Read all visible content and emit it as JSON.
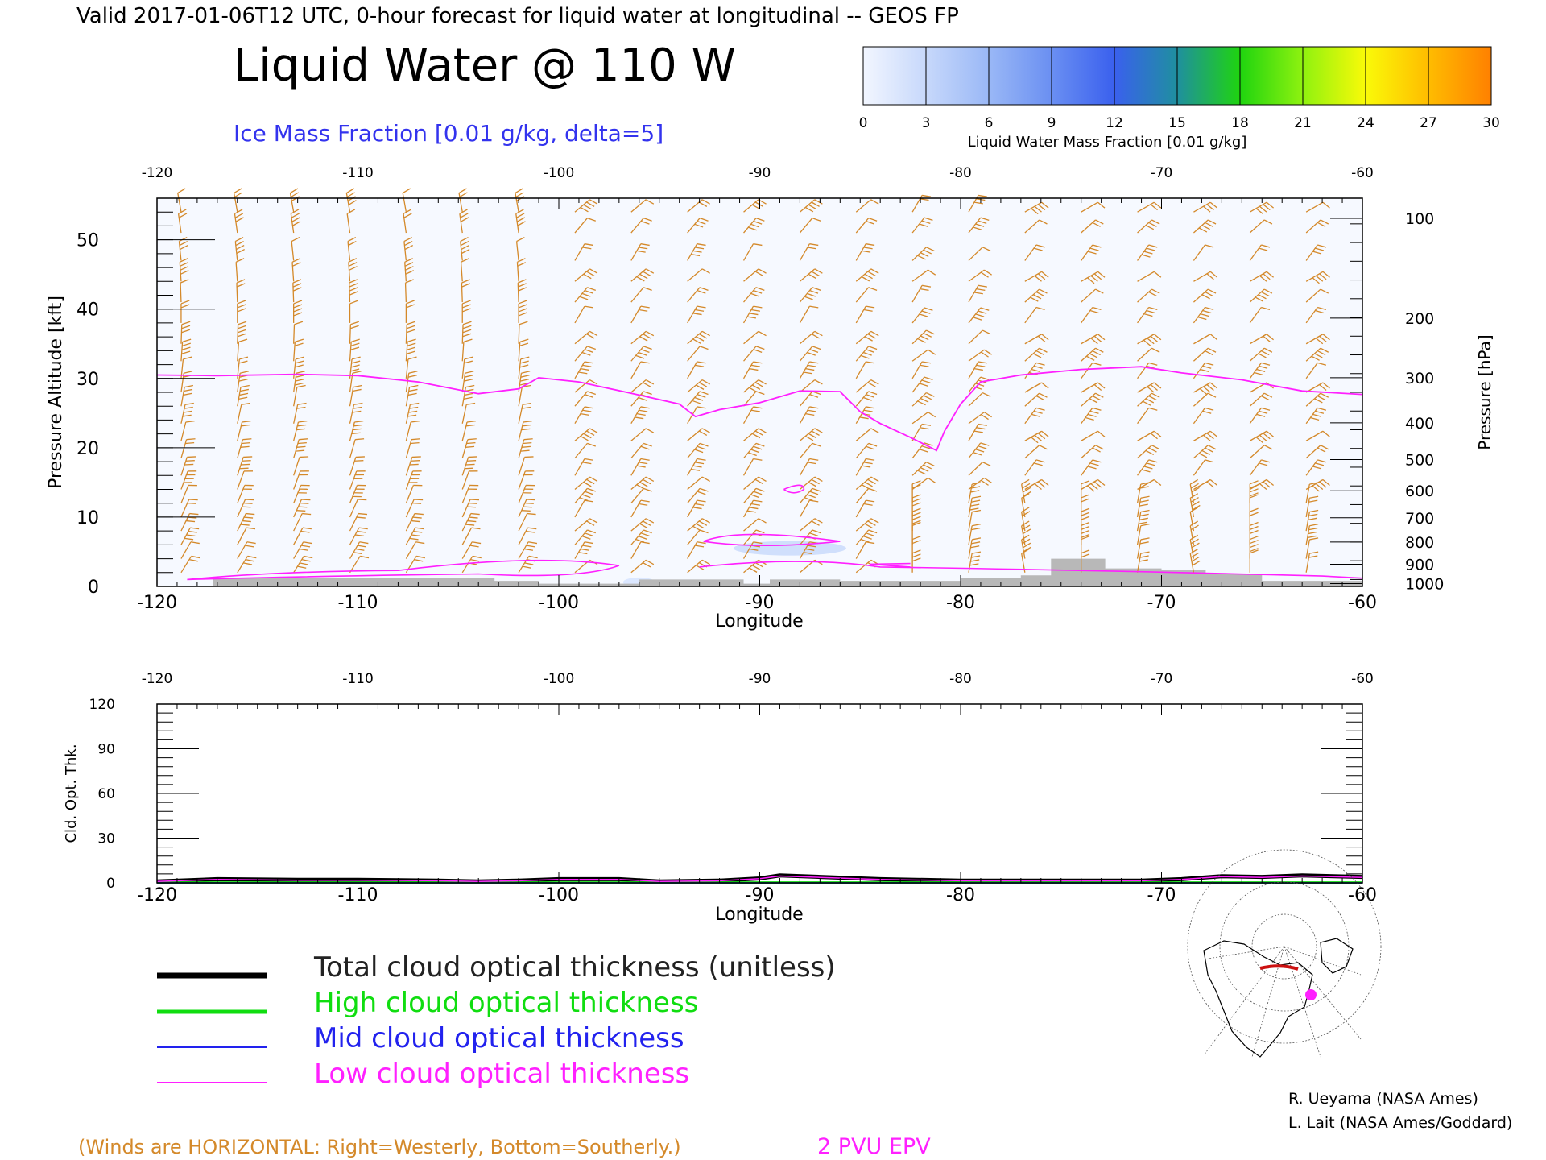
{
  "header": {
    "top_line": "Valid 2017-01-06T12 UTC, 0-hour forecast for liquid water at longitudinal -- GEOS FP",
    "main_title": "Liquid Water @ 110 W",
    "subtitle": "Ice Mass Fraction [0.01 g/kg, delta=5]"
  },
  "colorbar": {
    "label": "Liquid Water Mass Fraction [0.01 g/kg]",
    "ticks": [
      "0",
      "3",
      "6",
      "9",
      "12",
      "15",
      "18",
      "21",
      "24",
      "27",
      "30"
    ],
    "colors": [
      "#f2f6ff",
      "#c7d8fb",
      "#9ab8f6",
      "#6a8ff2",
      "#3a60ee",
      "#1f8f9f",
      "#1fd40f",
      "#8ff20f",
      "#fafa08",
      "#ffbc00",
      "#ff8000",
      "#ff3000"
    ]
  },
  "colors": {
    "winds": "#d4892a",
    "tropopause": "#ff20ff",
    "total": "#000000",
    "high": "#10dd10",
    "mid": "#2222ee",
    "low": "#ff20ff",
    "terrain": "#b8b8b8",
    "subtitle": "#3333ee"
  },
  "chart_data": [
    {
      "type": "line",
      "title": "Liquid Water @ 110 W",
      "subtitle": "Ice Mass Fraction [0.01 g/kg, delta=5]",
      "xlabel": "Longitude",
      "ylabel": "Pressure Altitude [kft]",
      "y2label": "Pressure [hPa]",
      "xlim": [
        -120,
        -60
      ],
      "ylim": [
        0,
        56
      ],
      "x_ticks": [
        "-120",
        "-110",
        "-100",
        "-90",
        "-80",
        "-70",
        "-60"
      ],
      "x_tick_labels_top": [
        "-120",
        "-110",
        "-100",
        "-90",
        "-80",
        "-70",
        "-60"
      ],
      "y_ticks": [
        "0",
        "10",
        "20",
        "30",
        "40",
        "50"
      ],
      "y2_ticks": [
        "100",
        "200",
        "300",
        "400",
        "500",
        "600",
        "700",
        "800",
        "900",
        "1000"
      ],
      "grid": false,
      "series": [
        {
          "name": "2 PVU EPV",
          "x": [
            -120,
            -117,
            -113,
            -110,
            -107,
            -104,
            -102,
            -101,
            -99,
            -96,
            -94,
            -93.2,
            -92,
            -90,
            -88,
            -86,
            -85,
            -84,
            -82.5,
            -81.2,
            -80.8,
            -80,
            -79,
            -77,
            -74,
            -71,
            -69,
            -66,
            -63,
            -60
          ],
          "y": [
            30.5,
            30.4,
            30.6,
            30.4,
            29.5,
            27.8,
            28.5,
            30.1,
            29.5,
            27.6,
            26.3,
            24.5,
            25.5,
            26.5,
            28.2,
            28.1,
            25.2,
            23.5,
            21.5,
            19.6,
            22.4,
            26.3,
            29.5,
            30.5,
            31.3,
            31.7,
            30.8,
            29.8,
            28.2,
            27.7
          ]
        }
      ],
      "pressure_levels": [
        {
          "label": "100",
          "kft": 53.1
        },
        {
          "label": "200",
          "kft": 38.7
        },
        {
          "label": "300",
          "kft": 30.1
        },
        {
          "label": "400",
          "kft": 23.6
        },
        {
          "label": "500",
          "kft": 18.3
        },
        {
          "label": "600",
          "kft": 13.8
        },
        {
          "label": "700",
          "kft": 9.9
        },
        {
          "label": "800",
          "kft": 6.4
        },
        {
          "label": "900",
          "kft": 3.2
        },
        {
          "label": "1000",
          "kft": 0.4
        }
      ],
      "terrain": {
        "x": [
          -120,
          -117.2,
          -117.2,
          -103.2,
          -103.2,
          -101,
          -101,
          -96,
          -96,
          -90.8,
          -90.8,
          -89.5,
          -89.5,
          -86,
          -86,
          -80,
          -80,
          -77,
          -77,
          -75.5,
          -75.5,
          -72.8,
          -72.8,
          -70,
          -70,
          -67.8,
          -67.8,
          -65,
          -65,
          -60
        ],
        "y": [
          0,
          0,
          1.2,
          1.2,
          0.8,
          0.8,
          0.4,
          0.4,
          1.0,
          1.0,
          0.4,
          0.4,
          1.0,
          1.0,
          0.8,
          0.8,
          1.2,
          1.2,
          1.6,
          1.6,
          4.0,
          4.0,
          2.6,
          2.6,
          2.4,
          2.4,
          1.8,
          1.8,
          0.8,
          0.8
        ]
      },
      "winds_note": "(Winds are HORIZONTAL: Right=Westerly, Bottom=Southerly.)"
    },
    {
      "type": "line",
      "xlabel": "Longitude",
      "ylabel": "Cld. Opt. Thk.",
      "xlim": [
        -120,
        -60
      ],
      "ylim": [
        0,
        120
      ],
      "x_ticks": [
        "-120",
        "-110",
        "-100",
        "-90",
        "-80",
        "-70",
        "-60"
      ],
      "y_ticks": [
        "0",
        "30",
        "60",
        "90",
        "120"
      ],
      "grid": false,
      "series": [
        {
          "name": "Total cloud optical thickness (unitless)",
          "x": [
            -120,
            -117,
            -113,
            -110,
            -106,
            -104,
            -102,
            -100,
            -97,
            -95,
            -92,
            -90,
            -89,
            -87,
            -84,
            -80,
            -77,
            -74,
            -71,
            -69,
            -67,
            -65,
            -63,
            -60
          ],
          "y": [
            1,
            2.5,
            2,
            2,
            1.5,
            1,
            1.5,
            2.5,
            2.5,
            1,
            1.5,
            3,
            5,
            4,
            2.5,
            1.5,
            1.5,
            1.5,
            1.5,
            2.5,
            4.5,
            4,
            5,
            4
          ]
        },
        {
          "name": "High cloud optical thickness",
          "x": [
            -120,
            -60
          ],
          "y": [
            0.2,
            0.2
          ]
        },
        {
          "name": "Mid cloud optical thickness",
          "x": [
            -120,
            -60
          ],
          "y": [
            0,
            0
          ]
        },
        {
          "name": "Low cloud optical thickness",
          "x": [
            -120,
            -117,
            -113,
            -110,
            -106,
            -104,
            -102,
            -100,
            -97,
            -95,
            -92,
            -90,
            -89,
            -87,
            -84,
            -80,
            -77,
            -74,
            -71,
            -69,
            -67,
            -65,
            -63,
            -60
          ],
          "y": [
            1,
            2.3,
            1.8,
            1.8,
            1.4,
            0.9,
            1.4,
            2.3,
            2.3,
            0.9,
            1.4,
            2.8,
            4.6,
            3.7,
            2.3,
            1.4,
            1.4,
            1.4,
            1.4,
            2.3,
            4.2,
            3.7,
            4.6,
            3.7
          ]
        }
      ]
    }
  ],
  "legend": {
    "total": "Total cloud optical thickness (unitless)",
    "high": "High cloud optical thickness",
    "mid": "Mid cloud optical thickness",
    "low": "Low cloud optical thickness"
  },
  "footer": {
    "winds_note": "(Winds are HORIZONTAL: Right=Westerly, Bottom=Southerly.)",
    "epv_label": "2 PVU EPV",
    "credit1": "R. Ueyama (NASA Ames)",
    "credit2": "L. Lait (NASA Ames/Goddard)"
  }
}
